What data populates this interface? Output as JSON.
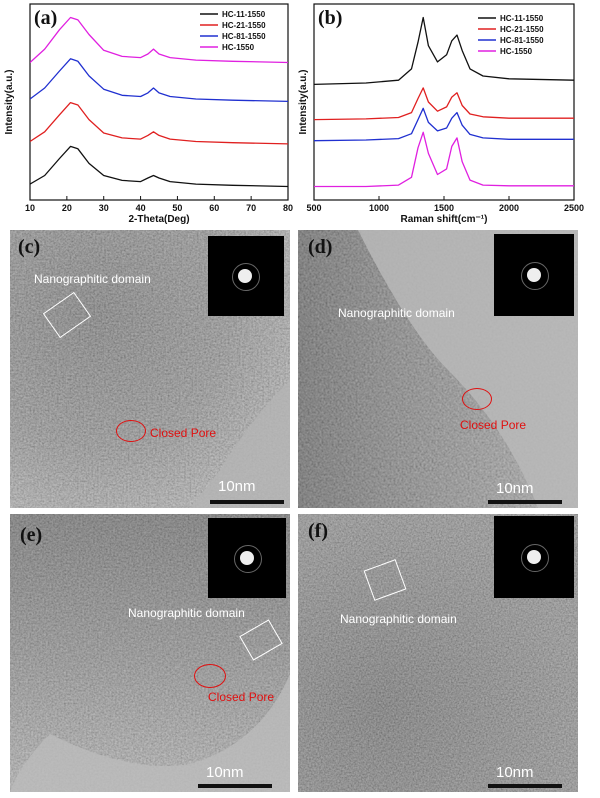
{
  "chart_data": [
    {
      "panel": "(a)",
      "type": "line",
      "xlabel": "2-Theta(Deg)",
      "ylabel": "Intensity(a.u.)",
      "xlim": [
        10,
        80
      ],
      "xticks": [
        10,
        20,
        30,
        40,
        50,
        60,
        70,
        80
      ],
      "grid": false,
      "legend_position": "top-right",
      "series": [
        {
          "name": "HC-11-1550",
          "color": "#111111",
          "x": [
            10,
            14,
            18,
            21,
            23,
            26,
            30,
            35,
            40,
            42,
            43.5,
            45,
            48,
            55,
            65,
            80
          ],
          "y": [
            0.05,
            0.12,
            0.26,
            0.36,
            0.34,
            0.22,
            0.12,
            0.08,
            0.07,
            0.1,
            0.12,
            0.1,
            0.07,
            0.05,
            0.04,
            0.03
          ]
        },
        {
          "name": "HC-21-1550",
          "color": "#e02020",
          "x": [
            10,
            14,
            18,
            21,
            23,
            26,
            30,
            35,
            40,
            42,
            43.5,
            45,
            48,
            55,
            65,
            80
          ],
          "y": [
            0.4,
            0.48,
            0.62,
            0.72,
            0.7,
            0.58,
            0.47,
            0.43,
            0.42,
            0.45,
            0.48,
            0.45,
            0.42,
            0.4,
            0.39,
            0.38
          ]
        },
        {
          "name": "HC-81-1550",
          "color": "#2030d0",
          "x": [
            10,
            14,
            18,
            21,
            23,
            26,
            30,
            35,
            40,
            42,
            43.5,
            45,
            48,
            55,
            65,
            80
          ],
          "y": [
            0.75,
            0.84,
            0.98,
            1.08,
            1.06,
            0.94,
            0.83,
            0.78,
            0.77,
            0.8,
            0.84,
            0.8,
            0.77,
            0.75,
            0.74,
            0.73
          ]
        },
        {
          "name": "HC-1550",
          "color": "#e020e0",
          "x": [
            10,
            14,
            18,
            21,
            23,
            26,
            30,
            35,
            40,
            42,
            43.5,
            45,
            48,
            55,
            65,
            80
          ],
          "y": [
            1.05,
            1.16,
            1.32,
            1.42,
            1.4,
            1.28,
            1.15,
            1.1,
            1.09,
            1.12,
            1.16,
            1.12,
            1.09,
            1.07,
            1.06,
            1.05
          ]
        }
      ]
    },
    {
      "panel": "(b)",
      "type": "line",
      "xlabel": "Raman shift(cm⁻¹)",
      "ylabel": "Intensity(a.u.)",
      "xlim": [
        500,
        2500
      ],
      "xticks": [
        500,
        1000,
        1500,
        2000,
        2500
      ],
      "grid": false,
      "legend_position": "top-right",
      "series": [
        {
          "name": "HC-11-1550",
          "color": "#111111",
          "x": [
            500,
            900,
            1150,
            1250,
            1300,
            1340,
            1380,
            1450,
            1520,
            1560,
            1600,
            1640,
            1700,
            1800,
            2000,
            2500
          ],
          "y": [
            1.5,
            1.52,
            1.56,
            1.72,
            2.1,
            2.45,
            2.05,
            1.82,
            1.92,
            2.12,
            2.2,
            1.98,
            1.72,
            1.62,
            1.58,
            1.56
          ]
        },
        {
          "name": "HC-21-1550",
          "color": "#e02020",
          "x": [
            500,
            900,
            1150,
            1250,
            1300,
            1340,
            1380,
            1450,
            1520,
            1560,
            1600,
            1640,
            1700,
            1800,
            2000,
            2500
          ],
          "y": [
            1.0,
            1.01,
            1.03,
            1.1,
            1.3,
            1.45,
            1.25,
            1.12,
            1.18,
            1.32,
            1.38,
            1.2,
            1.08,
            1.04,
            1.02,
            1.02
          ]
        },
        {
          "name": "HC-81-1550",
          "color": "#2030d0",
          "x": [
            500,
            900,
            1150,
            1250,
            1300,
            1340,
            1380,
            1450,
            1520,
            1560,
            1600,
            1640,
            1700,
            1800,
            2000,
            2500
          ],
          "y": [
            0.7,
            0.71,
            0.73,
            0.8,
            1.0,
            1.16,
            0.96,
            0.84,
            0.88,
            1.02,
            1.1,
            0.92,
            0.79,
            0.74,
            0.72,
            0.72
          ]
        },
        {
          "name": "HC-1550",
          "color": "#e020e0",
          "x": [
            500,
            900,
            1150,
            1250,
            1300,
            1340,
            1380,
            1450,
            1520,
            1560,
            1600,
            1640,
            1700,
            1800,
            2000,
            2500
          ],
          "y": [
            0.05,
            0.05,
            0.07,
            0.18,
            0.6,
            0.82,
            0.52,
            0.22,
            0.3,
            0.62,
            0.74,
            0.4,
            0.14,
            0.07,
            0.06,
            0.06
          ]
        }
      ]
    }
  ],
  "tem_panels": [
    {
      "letter": "(c)",
      "domain_label": "Nanographitic domain",
      "pore_label": "Closed Pore",
      "scale_label": "10nm"
    },
    {
      "letter": "(d)",
      "domain_label": "Nanographitic domain",
      "pore_label": "Closed Pore",
      "scale_label": "10nm"
    },
    {
      "letter": "(e)",
      "domain_label": "Nanographitic domain",
      "pore_label": "Closed Pore",
      "scale_label": "10nm"
    },
    {
      "letter": "(f)",
      "domain_label": "Nanographitic domain",
      "pore_label": "",
      "scale_label": "10nm"
    }
  ]
}
